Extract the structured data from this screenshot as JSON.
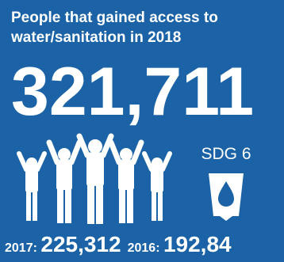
{
  "headline": "People that gained access to\nwater/sanitation in 2018",
  "big_number": "321,711",
  "sdg_label": "SDG 6",
  "icons": {
    "people": "people-celebrating-icon",
    "sdg6": "water-drop-in-glass-icon"
  },
  "colors": {
    "background": "#1b63a6",
    "foreground": "#ffffff"
  },
  "stats": [
    {
      "label": "2017:",
      "value": "225,312"
    },
    {
      "label": "2016:",
      "value": "192,84"
    }
  ]
}
